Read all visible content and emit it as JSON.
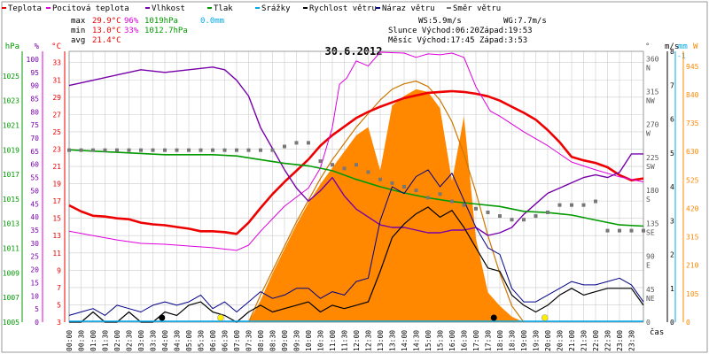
{
  "legend": [
    {
      "label": "Teplota",
      "color": "#ee0000"
    },
    {
      "label": "Pocitová teplota",
      "color": "#dd00dd"
    },
    {
      "label": "Vlhkost",
      "color": "#7700aa"
    },
    {
      "label": "Tlak",
      "color": "#009900"
    },
    {
      "label": "Srážky",
      "color": "#00aaee"
    },
    {
      "label": "Rychlost větru",
      "color": "#000000"
    },
    {
      "label": "Náraz větru",
      "color": "#000088"
    },
    {
      "label": "Směr větru",
      "color": "#777777"
    }
  ],
  "stats": {
    "max": {
      "label": "max",
      "temp": "29.9°C",
      "hum": "96%",
      "press": "1019hPa",
      "rain": "0.0mm"
    },
    "min": {
      "label": "min",
      "temp": "13.0°C",
      "hum": "33%",
      "press": "1012.7hPa"
    },
    "avg": {
      "label": "avg",
      "temp": "21.4°C"
    }
  },
  "info": {
    "ws": "WS:5.9m/s",
    "wg": "WG:7.7m/s",
    "sun": "Slunce Východ:06:20",
    "sun_set": "Západ:19:53",
    "moon": "Měsíc Východ:17:45",
    "moon_set": "Západ:3:53"
  },
  "colors": {
    "temp": "#ee0000",
    "feels": "#dd00dd",
    "hum": "#7700aa",
    "press": "#009900",
    "rain": "#00aaee",
    "wind": "#000000",
    "gust": "#000088",
    "dir": "#777777",
    "solar": "#ff8800",
    "solar_curve": "#cc7700",
    "grid": "#cccccc"
  },
  "chart_data": {
    "type": "line",
    "title": "30.6.2012",
    "x_unit_label": "čas",
    "x_tick_labels": [
      "00:00",
      "00:30",
      "01:00",
      "01:30",
      "02:00",
      "02:30",
      "03:00",
      "03:30",
      "04:00",
      "04:30",
      "05:00",
      "05:30",
      "06:00",
      "06:30",
      "07:00",
      "07:30",
      "08:00",
      "08:30",
      "09:00",
      "09:30",
      "10:00",
      "10:30",
      "11:00",
      "11:30",
      "12:00",
      "12:30",
      "13:00",
      "13:30",
      "14:00",
      "14:30",
      "15:00",
      "15:30",
      "16:00",
      "16:30",
      "17:00",
      "17:30",
      "18:00",
      "18:30",
      "19:00",
      "19:30",
      "20:00",
      "20:30",
      "21:00",
      "21:30",
      "22:00",
      "22:30",
      "23:00",
      "23:30"
    ],
    "axes": {
      "hpa": {
        "unit": "hPa",
        "ticks": [
          "1025",
          "1023",
          "1021",
          "1019",
          "1017",
          "1015",
          "1013",
          "1011",
          "1009",
          "1007",
          "1005"
        ],
        "range": [
          1005,
          1027
        ]
      },
      "percent": {
        "unit": "%",
        "ticks": [
          "100",
          "95",
          "90",
          "85",
          "80",
          "75",
          "70",
          "65",
          "60",
          "55",
          "50",
          "45",
          "40",
          "35",
          "30",
          "25",
          "20",
          "15",
          "10",
          "5",
          "0"
        ],
        "range": [
          0,
          103
        ]
      },
      "celsius": {
        "unit": "°C",
        "ticks": [
          "33",
          "31",
          "29",
          "27",
          "25",
          "23",
          "21",
          "19",
          "17",
          "15",
          "13",
          "11",
          "9",
          "7",
          "5",
          "3"
        ],
        "range": [
          3,
          34.3
        ]
      },
      "degrees": {
        "unit": "°",
        "ticks": [
          {
            "v": "360",
            "d": "N"
          },
          {
            "v": "315",
            "d": "NW"
          },
          {
            "v": "270",
            "d": "W"
          },
          {
            "v": "225",
            "d": "SW"
          },
          {
            "v": "180",
            "d": "S"
          },
          {
            "v": "135",
            "d": "SE"
          },
          {
            "v": "90",
            "d": "E"
          },
          {
            "v": "45",
            "d": "NE"
          },
          {
            "v": "0",
            "d": ""
          }
        ],
        "range": [
          0,
          370
        ]
      },
      "wind": {
        "unit": "m/s",
        "ticks": [
          "8",
          "7",
          "6",
          "5",
          "4",
          "3",
          "2",
          "1",
          "0"
        ],
        "range": [
          0,
          8
        ]
      },
      "mm": {
        "unit": "mm",
        "ticks": [
          "1"
        ],
        "range": [
          0,
          1
        ]
      },
      "solar": {
        "unit": "W",
        "ticks": [
          "945",
          "840",
          "735",
          "630",
          "525",
          "420",
          "315",
          "210",
          "105",
          "0"
        ],
        "range": [
          0,
          1000
        ]
      }
    },
    "series": [
      {
        "name": "Teplota",
        "key": "temp",
        "axis": "celsius",
        "x": [
          0,
          0.5,
          1,
          1.5,
          2,
          2.5,
          3,
          3.5,
          4,
          4.5,
          5,
          5.5,
          6,
          6.5,
          7,
          7.5,
          8,
          8.5,
          9,
          9.5,
          10,
          10.5,
          11,
          11.5,
          12,
          12.5,
          13,
          13.5,
          14,
          14.5,
          15,
          15.5,
          16,
          16.5,
          17,
          17.5,
          18,
          18.5,
          19,
          19.5,
          20,
          20.5,
          21,
          21.5,
          22,
          22.5,
          23,
          23.5,
          24
        ],
        "y": [
          16.5,
          15.8,
          15.3,
          15.2,
          15.0,
          14.9,
          14.5,
          14.3,
          14.2,
          14.0,
          13.8,
          13.5,
          13.5,
          13.4,
          13.2,
          14.5,
          16.2,
          17.8,
          19.2,
          20.5,
          21.8,
          23.4,
          24.6,
          25.6,
          26.6,
          27.3,
          27.9,
          28.4,
          28.9,
          29.2,
          29.5,
          29.6,
          29.7,
          29.6,
          29.4,
          29.1,
          28.6,
          27.9,
          27.2,
          26.4,
          25.2,
          23.8,
          22.1,
          21.7,
          21.4,
          20.9,
          20.0,
          19.4,
          19.6
        ]
      },
      {
        "name": "Pocitová teplota",
        "key": "feels",
        "axis": "celsius",
        "x": [
          0,
          1,
          2,
          3,
          4,
          5,
          6,
          7,
          7.5,
          8,
          9,
          10,
          10.5,
          11,
          11.3,
          11.6,
          12,
          12.5,
          13,
          14,
          14.5,
          15,
          15.5,
          16,
          16.5,
          17,
          17.3,
          17.6,
          18,
          19,
          20,
          21,
          22,
          23,
          24
        ],
        "y": [
          13.5,
          13.0,
          12.5,
          12.1,
          12.0,
          11.8,
          11.6,
          11.3,
          11.9,
          13.5,
          16.4,
          18.5,
          20.8,
          25.5,
          30.5,
          31.2,
          33.2,
          32.6,
          34.2,
          34.1,
          33.6,
          34.0,
          33.9,
          34.1,
          33.6,
          30.2,
          28.8,
          27.4,
          26.8,
          25.0,
          23.4,
          21.5,
          20.6,
          19.8,
          19.2
        ]
      },
      {
        "name": "Vlhkost",
        "key": "hum",
        "axis": "percent",
        "x": [
          0,
          1,
          2,
          3,
          4,
          5,
          6,
          6.5,
          7,
          7.5,
          8,
          8.5,
          9,
          9.5,
          10,
          10.5,
          11,
          11.5,
          12,
          12.5,
          13,
          13.5,
          14,
          14.5,
          15,
          15.5,
          16,
          16.5,
          17,
          17.5,
          18,
          18.5,
          19,
          19.5,
          20,
          20.5,
          21,
          21.5,
          22,
          22.5,
          23,
          23.5,
          24
        ],
        "y": [
          90,
          92,
          94,
          96,
          95,
          96,
          97,
          96,
          92,
          86,
          74,
          66,
          58,
          51,
          46,
          50,
          55,
          48,
          43,
          40,
          37,
          36,
          36,
          35,
          34,
          34,
          35,
          35,
          36,
          33,
          34,
          36,
          41,
          45,
          49,
          51,
          53,
          55,
          56,
          55,
          57,
          64,
          64
        ]
      },
      {
        "name": "Tlak",
        "key": "press",
        "axis": "hpa",
        "x": [
          0,
          2,
          4,
          6,
          7,
          8,
          9,
          10,
          11,
          12,
          13,
          14,
          15,
          16,
          17,
          18,
          19,
          20,
          21,
          22,
          23,
          24
        ],
        "y": [
          1019.0,
          1018.8,
          1018.6,
          1018.6,
          1018.5,
          1018.2,
          1017.9,
          1017.7,
          1017.3,
          1016.6,
          1016.0,
          1015.5,
          1015.1,
          1014.8,
          1014.6,
          1014.4,
          1014.0,
          1013.9,
          1013.7,
          1013.3,
          1012.9,
          1012.8
        ]
      },
      {
        "name": "Rychlost větru",
        "key": "wind",
        "axis": "wind",
        "x": [
          0,
          0.5,
          1,
          1.5,
          2,
          2.5,
          3,
          3.5,
          4,
          4.5,
          5,
          5.5,
          6,
          6.5,
          7,
          7.5,
          8,
          8.5,
          9,
          9.5,
          10,
          10.5,
          11,
          11.5,
          12,
          12.5,
          13,
          13.5,
          14,
          14.5,
          15,
          15.5,
          16,
          16.5,
          17,
          17.5,
          18,
          18.5,
          19,
          19.5,
          20,
          20.5,
          21,
          21.5,
          22,
          22.5,
          23,
          23.5,
          24
        ],
        "y": [
          0,
          0,
          0.3,
          0,
          0,
          0.3,
          0,
          0,
          0.3,
          0.2,
          0.5,
          0.6,
          0.3,
          0.2,
          0,
          0.3,
          0.5,
          0.3,
          0.4,
          0.5,
          0.6,
          0.3,
          0.5,
          0.4,
          0.5,
          0.6,
          1.5,
          2.5,
          2.9,
          3.2,
          3.4,
          3.1,
          3.3,
          2.8,
          2.2,
          1.6,
          1.5,
          0.8,
          0.5,
          0.3,
          0.5,
          0.8,
          1.0,
          0.8,
          0.9,
          1.0,
          1.0,
          1.0,
          0.5
        ]
      },
      {
        "name": "Náraz větru",
        "key": "gust",
        "axis": "wind",
        "x": [
          0,
          0.5,
          1,
          1.5,
          2,
          2.5,
          3,
          3.5,
          4,
          4.5,
          5,
          5.5,
          6,
          6.5,
          7,
          7.5,
          8,
          8.5,
          9,
          9.5,
          10,
          10.5,
          11,
          11.5,
          12,
          12.5,
          13,
          13.5,
          14,
          14.5,
          15,
          15.5,
          16,
          16.5,
          17,
          17.5,
          18,
          18.5,
          19,
          19.5,
          20,
          20.5,
          21,
          21.5,
          22,
          22.5,
          23,
          23.5,
          24
        ],
        "y": [
          0.2,
          0.3,
          0.4,
          0.2,
          0.5,
          0.4,
          0.3,
          0.5,
          0.6,
          0.5,
          0.6,
          0.8,
          0.4,
          0.6,
          0.3,
          0.6,
          0.9,
          0.7,
          0.8,
          1.0,
          1.0,
          0.7,
          0.9,
          0.8,
          1.2,
          1.3,
          3.0,
          4.0,
          3.8,
          4.3,
          4.5,
          4.0,
          4.4,
          3.6,
          2.8,
          2.2,
          2.0,
          1.0,
          0.6,
          0.6,
          0.8,
          1.0,
          1.2,
          1.1,
          1.1,
          1.2,
          1.3,
          1.1,
          0.6
        ]
      },
      {
        "name": "Směr větru",
        "key": "dir",
        "axis": "degrees",
        "x": [
          0,
          0.5,
          1,
          1.5,
          2,
          2.5,
          3,
          3.5,
          4,
          4.5,
          5,
          5.5,
          6,
          6.5,
          7,
          7.5,
          8,
          8.5,
          9,
          9.5,
          10,
          10.5,
          11,
          11.5,
          12,
          12.5,
          13,
          13.5,
          14,
          14.5,
          15,
          15.5,
          16,
          16.5,
          17,
          17.5,
          18,
          18.5,
          19,
          19.5,
          20,
          20.5,
          21,
          21.5,
          22,
          22.5,
          23,
          23.5,
          24
        ],
        "y": [
          235,
          235,
          235,
          235,
          235,
          235,
          235,
          235,
          235,
          235,
          235,
          235,
          235,
          235,
          235,
          235,
          235,
          235,
          240,
          245,
          245,
          220,
          215,
          210,
          215,
          205,
          195,
          190,
          185,
          180,
          170,
          175,
          165,
          160,
          155,
          150,
          145,
          140,
          140,
          145,
          150,
          160,
          160,
          160,
          165,
          125,
          125,
          125,
          125
        ]
      }
    ],
    "solar": {
      "name": "Sluneční záření",
      "axis": "solar",
      "x": [
        7.5,
        8,
        8.5,
        9,
        9.5,
        10,
        10.5,
        11,
        11.5,
        12,
        12.5,
        13,
        13.5,
        14,
        14.5,
        15,
        15.5,
        16,
        16.5,
        17,
        17.5,
        18,
        18.5,
        19
      ],
      "y": [
        0,
        80,
        180,
        270,
        360,
        440,
        510,
        570,
        630,
        690,
        720,
        560,
        800,
        835,
        860,
        850,
        790,
        520,
        760,
        310,
        110,
        60,
        20,
        0
      ],
      "clear_sky_curve_y": [
        0,
        100,
        190,
        280,
        370,
        450,
        530,
        600,
        660,
        720,
        770,
        820,
        860,
        880,
        890,
        870,
        820,
        740,
        620,
        480,
        320,
        180,
        60,
        0
      ]
    },
    "rain": {
      "name": "Srážky",
      "axis": "mm",
      "total": "0.0mm"
    },
    "markers": {
      "sun": {
        "rise": 6.33,
        "set": 19.88,
        "color": "#ffee00"
      },
      "moon": {
        "rise": 17.75,
        "set": 3.88,
        "color": "#000000"
      }
    }
  }
}
